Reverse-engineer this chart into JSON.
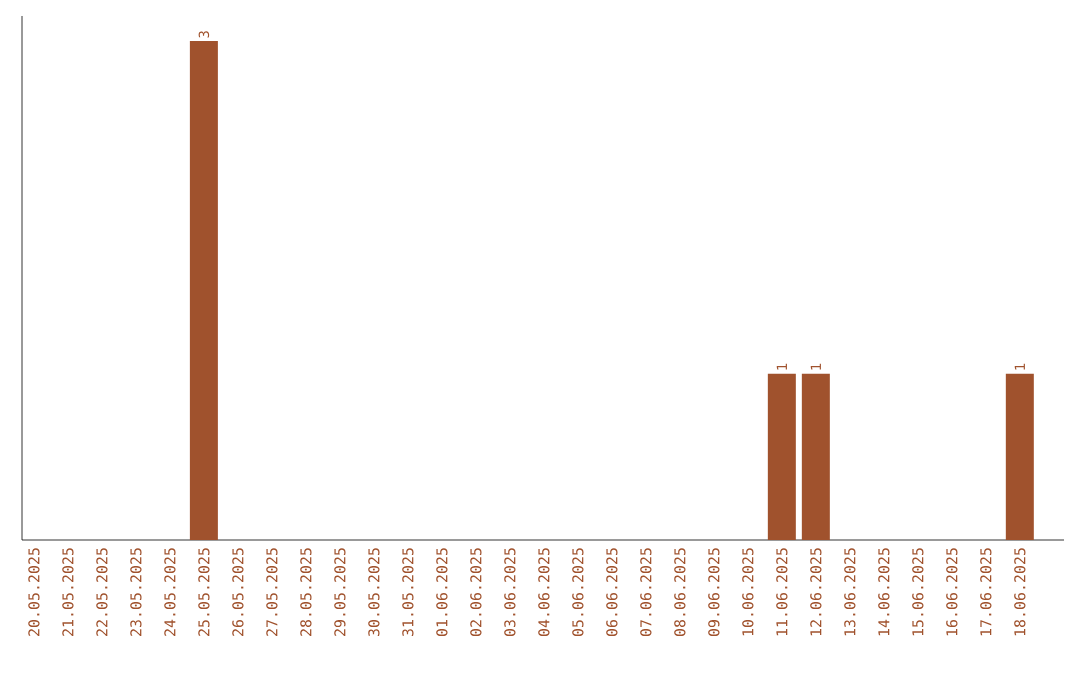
{
  "chart_data": {
    "type": "bar",
    "categories": [
      "20.05.2025",
      "21.05.2025",
      "22.05.2025",
      "23.05.2025",
      "24.05.2025",
      "25.05.2025",
      "26.05.2025",
      "27.05.2025",
      "28.05.2025",
      "29.05.2025",
      "30.05.2025",
      "31.05.2025",
      "01.06.2025",
      "02.06.2025",
      "03.06.2025",
      "04.06.2025",
      "05.06.2025",
      "06.06.2025",
      "07.06.2025",
      "08.06.2025",
      "09.06.2025",
      "10.06.2025",
      "11.06.2025",
      "12.06.2025",
      "13.06.2025",
      "14.06.2025",
      "15.06.2025",
      "16.06.2025",
      "17.06.2025",
      "18.06.2025"
    ],
    "values": [
      0,
      0,
      0,
      0,
      0,
      3,
      0,
      0,
      0,
      0,
      0,
      0,
      0,
      0,
      0,
      0,
      0,
      0,
      0,
      0,
      0,
      0,
      1,
      1,
      0,
      0,
      0,
      0,
      0,
      1
    ],
    "value_labels": [
      null,
      null,
      null,
      null,
      null,
      "3",
      null,
      null,
      null,
      null,
      null,
      null,
      null,
      null,
      null,
      null,
      null,
      null,
      null,
      null,
      null,
      null,
      "1",
      "1",
      null,
      null,
      null,
      null,
      null,
      "1"
    ],
    "color": "#a0522d"
  }
}
